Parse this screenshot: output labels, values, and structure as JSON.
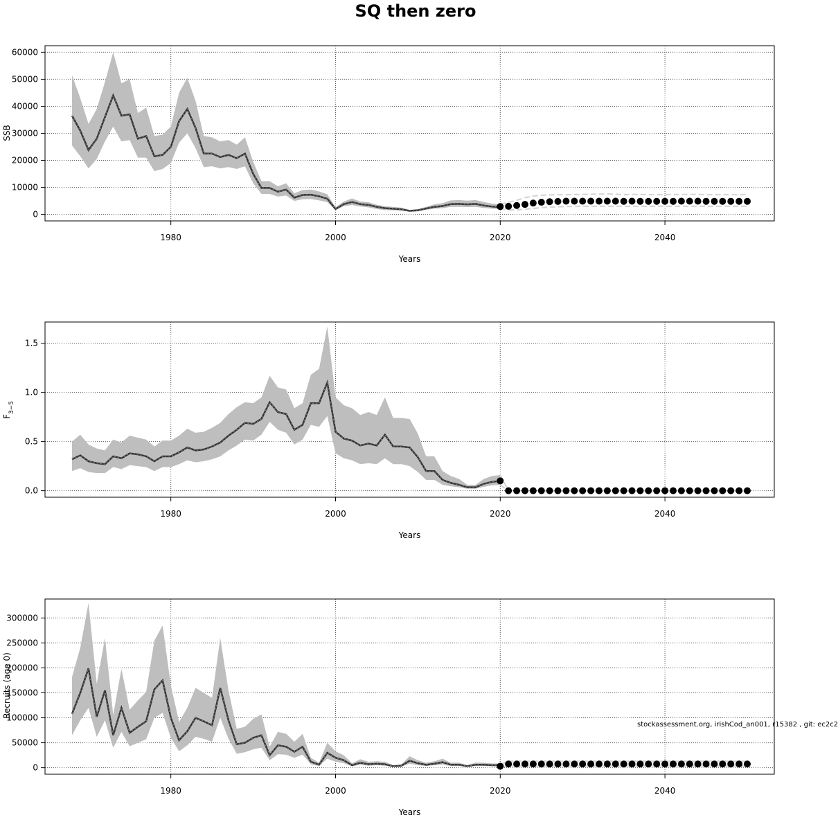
{
  "title": "SQ then zero",
  "footer": "stockassessment.org, irishCod_an001, r15382 , git: ec2c2",
  "colors": {
    "band": "#bebebe",
    "line": "#333333",
    "forecast_band": "#d3d3d3",
    "point": "#000000",
    "grid": "#555555"
  },
  "chart_data": [
    {
      "type": "line",
      "ylabel": "SSB",
      "xlabel": "Years",
      "xlim": [
        1968,
        2050
      ],
      "ylim": [
        0,
        60000
      ],
      "xticks": [
        1980,
        2000,
        2020,
        2040
      ],
      "yticks": [
        0,
        10000,
        20000,
        30000,
        40000,
        50000,
        60000
      ],
      "grid": true,
      "historical": {
        "x": [
          1968,
          1969,
          1970,
          1971,
          1972,
          1973,
          1974,
          1975,
          1976,
          1977,
          1978,
          1979,
          1980,
          1981,
          1982,
          1983,
          1984,
          1985,
          1986,
          1987,
          1988,
          1989,
          1990,
          1991,
          1992,
          1993,
          1994,
          1995,
          1996,
          1997,
          1998,
          1999,
          2000,
          2001,
          2002,
          2003,
          2004,
          2005,
          2006,
          2007,
          2008,
          2009,
          2010,
          2011,
          2012,
          2013,
          2014,
          2015,
          2016,
          2017,
          2018,
          2019,
          2020
        ],
        "estimate": [
          36500,
          31000,
          23800,
          28000,
          36000,
          44000,
          36500,
          37000,
          28000,
          29000,
          21500,
          22000,
          25000,
          34500,
          39000,
          32000,
          22500,
          22500,
          21200,
          22000,
          20800,
          22500,
          15000,
          9800,
          9800,
          8400,
          9200,
          6200,
          7200,
          7300,
          6700,
          5800,
          2000,
          3800,
          4600,
          3800,
          3500,
          2800,
          2300,
          2100,
          1900,
          1300,
          1500,
          2200,
          2800,
          3100,
          3800,
          3900,
          3700,
          3900,
          3300,
          2900,
          2700
        ],
        "lower": [
          25500,
          21500,
          17000,
          20500,
          27000,
          32500,
          27000,
          27500,
          21000,
          21000,
          16000,
          16800,
          19000,
          26500,
          30000,
          24500,
          17500,
          17800,
          17000,
          17500,
          16800,
          17800,
          11500,
          7600,
          7600,
          6600,
          7000,
          5000,
          5600,
          5700,
          5200,
          4500,
          1600,
          3000,
          3500,
          2900,
          2600,
          2000,
          1600,
          1500,
          1400,
          1000,
          1200,
          1700,
          2100,
          2300,
          2800,
          2800,
          2700,
          2800,
          2400,
          2100,
          2000
        ],
        "upper": [
          51500,
          43000,
          33500,
          39000,
          49000,
          60000,
          48500,
          50000,
          37500,
          39500,
          29000,
          29500,
          32500,
          45000,
          50500,
          42000,
          29000,
          28500,
          27000,
          27500,
          25800,
          28500,
          19500,
          12300,
          12300,
          10400,
          11500,
          7800,
          9000,
          9200,
          8500,
          7500,
          2600,
          4800,
          5900,
          4800,
          4500,
          3600,
          3000,
          2800,
          2500,
          1700,
          2000,
          2800,
          3700,
          4200,
          5200,
          5300,
          5100,
          5300,
          4600,
          4000,
          3700
        ]
      },
      "forecast": {
        "x": [
          2020,
          2021,
          2022,
          2023,
          2024,
          2025,
          2026,
          2027,
          2028,
          2029,
          2030,
          2031,
          2032,
          2033,
          2034,
          2035,
          2036,
          2037,
          2038,
          2039,
          2040,
          2041,
          2042,
          2043,
          2044,
          2045,
          2046,
          2047,
          2048,
          2049,
          2050
        ],
        "median": [
          2900,
          3000,
          3300,
          3700,
          4200,
          4500,
          4700,
          4800,
          4900,
          4900,
          4900,
          4900,
          4900,
          4900,
          4900,
          4850,
          4900,
          4850,
          4850,
          4850,
          4850,
          4850,
          4900,
          4900,
          4900,
          4850,
          4850,
          4850,
          4850,
          4850,
          4850
        ],
        "lower": [
          2000,
          1700,
          1700,
          1900,
          2200,
          2500,
          2700,
          2800,
          2900,
          3000,
          3000,
          3000,
          3000,
          3000,
          3000,
          3000,
          3000,
          3000,
          3000,
          3000,
          3000,
          3000,
          3000,
          3000,
          3000,
          3000,
          3000,
          3000,
          3000,
          3000,
          3000
        ],
        "upper": [
          3800,
          4500,
          5200,
          6200,
          6800,
          7100,
          7200,
          7300,
          7300,
          7400,
          7400,
          7500,
          7500,
          7600,
          7500,
          7300,
          7400,
          7400,
          7300,
          7300,
          7300,
          7300,
          7400,
          7400,
          7400,
          7300,
          7300,
          7300,
          7300,
          7300,
          7300
        ]
      }
    },
    {
      "type": "line",
      "ylabel": "F3-5",
      "xlabel": "Years",
      "xlim": [
        1968,
        2050
      ],
      "ylim": [
        0,
        1.65
      ],
      "xticks": [
        1980,
        2000,
        2020,
        2040
      ],
      "yticks": [
        "0.0",
        "0.5",
        "1.0",
        "1.5"
      ],
      "grid": true,
      "historical": {
        "x": [
          1968,
          1969,
          1970,
          1971,
          1972,
          1973,
          1974,
          1975,
          1976,
          1977,
          1978,
          1979,
          1980,
          1981,
          1982,
          1983,
          1984,
          1985,
          1986,
          1987,
          1988,
          1989,
          1990,
          1991,
          1992,
          1993,
          1994,
          1995,
          1996,
          1997,
          1998,
          1999,
          2000,
          2001,
          2002,
          2003,
          2004,
          2005,
          2006,
          2007,
          2008,
          2009,
          2010,
          2011,
          2012,
          2013,
          2014,
          2015,
          2016,
          2017,
          2018,
          2019,
          2020
        ],
        "estimate": [
          0.32,
          0.36,
          0.3,
          0.28,
          0.27,
          0.35,
          0.33,
          0.38,
          0.37,
          0.35,
          0.3,
          0.35,
          0.35,
          0.39,
          0.44,
          0.41,
          0.42,
          0.45,
          0.49,
          0.56,
          0.62,
          0.69,
          0.68,
          0.73,
          0.9,
          0.8,
          0.78,
          0.62,
          0.67,
          0.89,
          0.89,
          1.1,
          0.6,
          0.53,
          0.51,
          0.46,
          0.48,
          0.46,
          0.57,
          0.45,
          0.45,
          0.44,
          0.34,
          0.2,
          0.2,
          0.11,
          0.08,
          0.06,
          0.035,
          0.035,
          0.07,
          0.09,
          0.1
        ],
        "lower": [
          0.2,
          0.23,
          0.19,
          0.18,
          0.18,
          0.24,
          0.22,
          0.26,
          0.25,
          0.24,
          0.2,
          0.24,
          0.24,
          0.27,
          0.31,
          0.29,
          0.3,
          0.32,
          0.35,
          0.41,
          0.46,
          0.52,
          0.51,
          0.57,
          0.7,
          0.62,
          0.59,
          0.47,
          0.52,
          0.67,
          0.65,
          0.76,
          0.38,
          0.33,
          0.31,
          0.27,
          0.28,
          0.27,
          0.33,
          0.27,
          0.27,
          0.25,
          0.19,
          0.11,
          0.11,
          0.06,
          0.045,
          0.035,
          0.02,
          0.02,
          0.04,
          0.055,
          0.06
        ],
        "upper": [
          0.5,
          0.57,
          0.47,
          0.43,
          0.41,
          0.52,
          0.49,
          0.56,
          0.54,
          0.52,
          0.45,
          0.51,
          0.51,
          0.56,
          0.63,
          0.59,
          0.6,
          0.64,
          0.69,
          0.78,
          0.85,
          0.9,
          0.89,
          0.95,
          1.17,
          1.05,
          1.03,
          0.84,
          0.89,
          1.18,
          1.24,
          1.67,
          0.95,
          0.87,
          0.84,
          0.77,
          0.8,
          0.77,
          0.95,
          0.74,
          0.74,
          0.73,
          0.58,
          0.35,
          0.35,
          0.2,
          0.15,
          0.12,
          0.06,
          0.06,
          0.12,
          0.15,
          0.16
        ]
      },
      "forecast": {
        "x": [
          2020,
          2021,
          2022,
          2023,
          2024,
          2025,
          2026,
          2027,
          2028,
          2029,
          2030,
          2031,
          2032,
          2033,
          2034,
          2035,
          2036,
          2037,
          2038,
          2039,
          2040,
          2041,
          2042,
          2043,
          2044,
          2045,
          2046,
          2047,
          2048,
          2049,
          2050
        ],
        "median": [
          0.1,
          0,
          0,
          0,
          0,
          0,
          0,
          0,
          0,
          0,
          0,
          0,
          0,
          0,
          0,
          0,
          0,
          0,
          0,
          0,
          0,
          0,
          0,
          0,
          0,
          0,
          0,
          0,
          0,
          0,
          0
        ],
        "lower": [
          0.06,
          0,
          0,
          0,
          0,
          0,
          0,
          0,
          0,
          0,
          0,
          0,
          0,
          0,
          0,
          0,
          0,
          0,
          0,
          0,
          0,
          0,
          0,
          0,
          0,
          0,
          0,
          0,
          0,
          0,
          0
        ],
        "upper": [
          0.16,
          0,
          0,
          0,
          0,
          0,
          0,
          0,
          0,
          0,
          0,
          0,
          0,
          0,
          0,
          0,
          0,
          0,
          0,
          0,
          0,
          0,
          0,
          0,
          0,
          0,
          0,
          0,
          0,
          0,
          0
        ]
      }
    },
    {
      "type": "line",
      "ylabel": "Recruits (age 0)",
      "xlabel": "Years",
      "xlim": [
        1968,
        2050
      ],
      "ylim": [
        0,
        325000
      ],
      "xticks": [
        1980,
        2000,
        2020,
        2040
      ],
      "yticks": [
        0,
        50000,
        100000,
        150000,
        200000,
        250000,
        300000
      ],
      "grid": true,
      "historical": {
        "x": [
          1968,
          1969,
          1970,
          1971,
          1972,
          1973,
          1974,
          1975,
          1976,
          1977,
          1978,
          1979,
          1980,
          1981,
          1982,
          1983,
          1984,
          1985,
          1986,
          1987,
          1988,
          1989,
          1990,
          1991,
          1992,
          1993,
          1994,
          1995,
          1996,
          1997,
          1998,
          1999,
          2000,
          2001,
          2002,
          2003,
          2004,
          2005,
          2006,
          2007,
          2008,
          2009,
          2010,
          2011,
          2012,
          2013,
          2014,
          2015,
          2016,
          2017,
          2018,
          2019,
          2020
        ],
        "estimate": [
          108000,
          150000,
          199000,
          102000,
          155000,
          65000,
          120000,
          70000,
          82000,
          93000,
          157000,
          175000,
          100000,
          55000,
          73000,
          100000,
          93000,
          85000,
          160000,
          95000,
          47000,
          50000,
          60000,
          65000,
          25000,
          45000,
          42000,
          32000,
          42000,
          12000,
          6000,
          30000,
          20000,
          15000,
          5000,
          10000,
          7000,
          8000,
          7000,
          3000,
          4000,
          14000,
          9000,
          6000,
          8000,
          11000,
          6000,
          6000,
          3000,
          6000,
          6000,
          5000,
          5000
        ],
        "lower": [
          65000,
          95000,
          120000,
          62000,
          95000,
          40000,
          72000,
          43000,
          50000,
          57000,
          100000,
          110000,
          60000,
          33000,
          45000,
          62000,
          58000,
          52000,
          100000,
          58000,
          28000,
          31000,
          37000,
          40000,
          15000,
          27000,
          26000,
          20000,
          26000,
          7000,
          3500,
          18000,
          12000,
          9000,
          3000,
          6000,
          4000,
          5000,
          4000,
          1800,
          2400,
          8000,
          5000,
          3500,
          5000,
          6500,
          3500,
          3500,
          1800,
          3500,
          3500,
          3000,
          3000
        ],
        "upper": [
          182000,
          240000,
          330000,
          168000,
          260000,
          106000,
          198000,
          116000,
          135000,
          152000,
          255000,
          285000,
          165000,
          92000,
          120000,
          160000,
          150000,
          140000,
          260000,
          155000,
          78000,
          82000,
          98000,
          107000,
          42000,
          72000,
          68000,
          52000,
          68000,
          20000,
          10000,
          50000,
          33000,
          25000,
          9000,
          17000,
          12000,
          13000,
          12000,
          5000,
          7000,
          23000,
          15000,
          10000,
          13000,
          18000,
          10000,
          10000,
          5000,
          10000,
          10000,
          8500,
          8500
        ]
      },
      "forecast": {
        "x": [
          2020,
          2021,
          2022,
          2023,
          2024,
          2025,
          2026,
          2027,
          2028,
          2029,
          2030,
          2031,
          2032,
          2033,
          2034,
          2035,
          2036,
          2037,
          2038,
          2039,
          2040,
          2041,
          2042,
          2043,
          2044,
          2045,
          2046,
          2047,
          2048,
          2049,
          2050
        ],
        "median": [
          3000,
          7500,
          7500,
          7500,
          7500,
          7500,
          7500,
          7500,
          7500,
          7500,
          7500,
          7500,
          7500,
          7500,
          7500,
          7500,
          7500,
          7500,
          7500,
          7500,
          7500,
          7500,
          7500,
          7500,
          7500,
          7500,
          7500,
          7500,
          7500,
          7500,
          7500
        ],
        "lower": [
          1500,
          3500,
          3500,
          3500,
          3500,
          3500,
          3500,
          3500,
          3500,
          3500,
          3500,
          3500,
          3500,
          3500,
          3500,
          3500,
          3500,
          3500,
          3500,
          3500,
          3500,
          3500,
          3500,
          3500,
          3500,
          3500,
          3500,
          3500,
          3500,
          3500,
          3500
        ],
        "upper": [
          6000,
          13000,
          13000,
          13000,
          13000,
          13000,
          13000,
          13000,
          13000,
          13000,
          13000,
          13000,
          13000,
          13000,
          13000,
          13000,
          13000,
          13000,
          13000,
          13000,
          13000,
          13000,
          13000,
          13000,
          13000,
          13000,
          13000,
          13000,
          13000,
          13000,
          13000
        ]
      }
    }
  ]
}
